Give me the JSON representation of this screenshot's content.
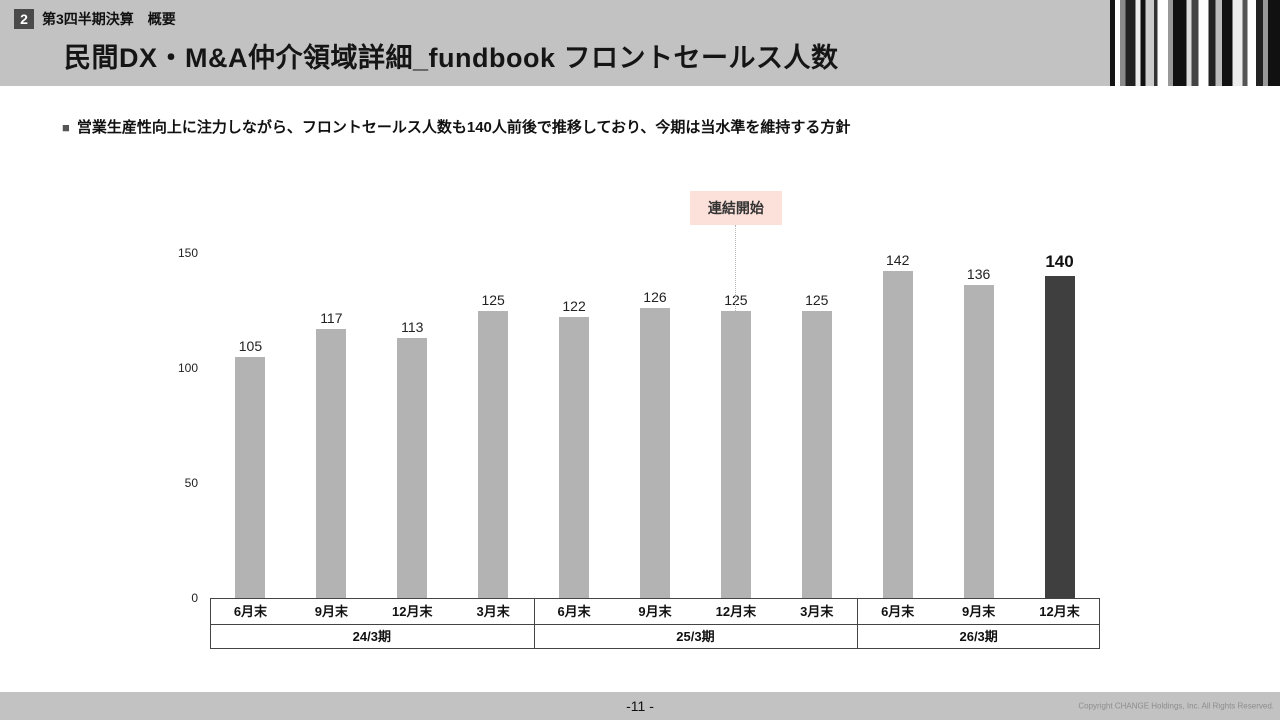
{
  "header": {
    "badge_number": "2",
    "kicker": "第3四半期決算　概要",
    "title": "民間DX・M&A仲介領域詳細_fundbook フロントセールス人数"
  },
  "summary": {
    "bullet": "営業生産性向上に注力しながら、フロントセールス人数も140人前後で推移しており、今期は当水準を維持する方針"
  },
  "chart_data": {
    "type": "bar",
    "title": "",
    "xlabel": "",
    "ylabel": "",
    "categories": [
      "6月末",
      "9月末",
      "12月末",
      "3月末",
      "6月末",
      "9月末",
      "12月末",
      "3月末",
      "6月末",
      "9月末",
      "12月末"
    ],
    "values": [
      105,
      117,
      113,
      125,
      122,
      126,
      125,
      125,
      142,
      136,
      140
    ],
    "groups": [
      {
        "label": "24/3期",
        "span": 4
      },
      {
        "label": "25/3期",
        "span": 4
      },
      {
        "label": "26/3期",
        "span": 3
      }
    ],
    "ylim": [
      0,
      150
    ],
    "yticks": [
      0,
      50,
      100,
      150
    ],
    "grid": false,
    "legend": false,
    "bar_color": "#b3b3b3",
    "highlight_color": "#3f3f3f",
    "highlight_index": 10,
    "annotation": {
      "label": "連結開始",
      "index": 6,
      "bg": "#fbe1da"
    }
  },
  "footer": {
    "page_number": "-11 -",
    "copyright": "Copyright CHANGE Holdings, Inc. All Rights Reserved."
  }
}
